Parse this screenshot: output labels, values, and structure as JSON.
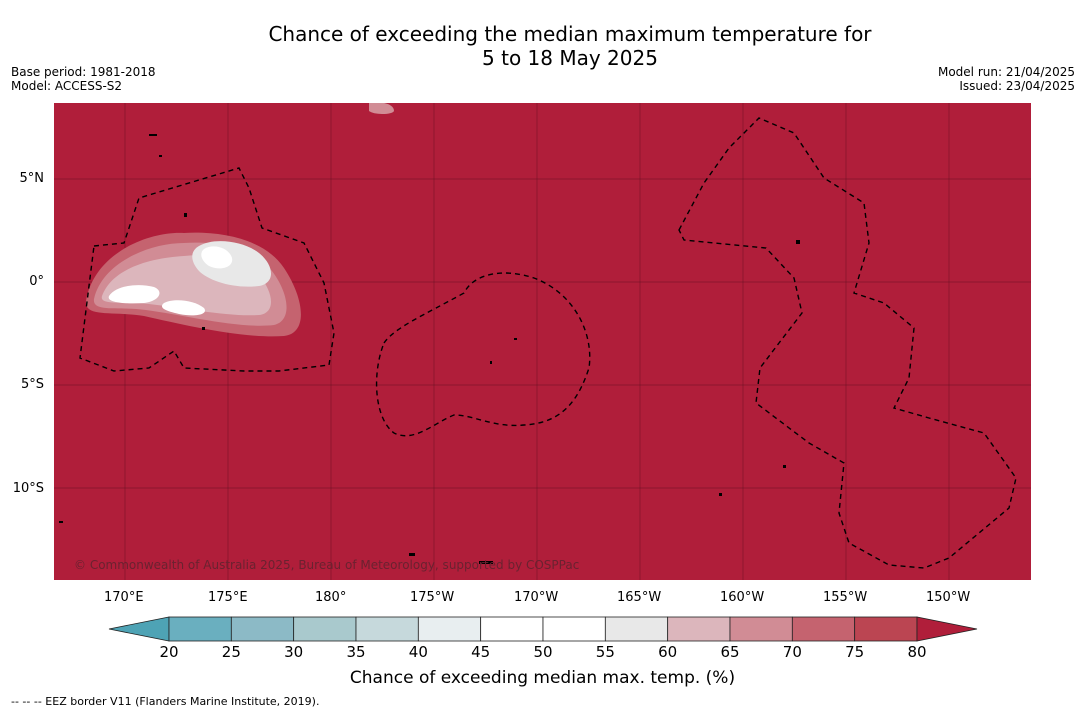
{
  "title": {
    "line1": "Chance of exceeding the median maximum temperature for",
    "line2": "5 to 18 May 2025"
  },
  "meta": {
    "base_period": "Base period: 1981-2018",
    "model": "Model: ACCESS-S2",
    "model_run": "Model run: 21/04/2025",
    "issued": "Issued: 23/04/2025"
  },
  "map": {
    "lon_labels": [
      "170°E",
      "175°E",
      "180°",
      "175°W",
      "170°W",
      "165°W",
      "160°W",
      "155°W",
      "150°W"
    ],
    "lat_labels": [
      "5°N",
      "0°",
      "5°S",
      "10°S"
    ],
    "background_color": "#b01e3a",
    "copyright": "© Commonwealth of Australia 2025, Bureau of Meteorology, supported by COSPPac"
  },
  "colorbar": {
    "title": "Chance of exceeding median max. temp. (%)",
    "levels": [
      "20",
      "25",
      "30",
      "35",
      "40",
      "45",
      "50",
      "55",
      "60",
      "65",
      "70",
      "75",
      "80"
    ],
    "colors": [
      "#6aafbf",
      "#8cbac6",
      "#a9c9cd",
      "#c6d9dc",
      "#e8eef0",
      "#ffffff",
      "#ffffff",
      "#e8e8e8",
      "#dcb6bc",
      "#d18c95",
      "#c5636f",
      "#bb4552"
    ],
    "under_color": "#4ea3b5",
    "over_color": "#b01e3a"
  },
  "footnote": "--  --  -- EEZ border V11 (Flanders Marine Institute, 2019)."
}
